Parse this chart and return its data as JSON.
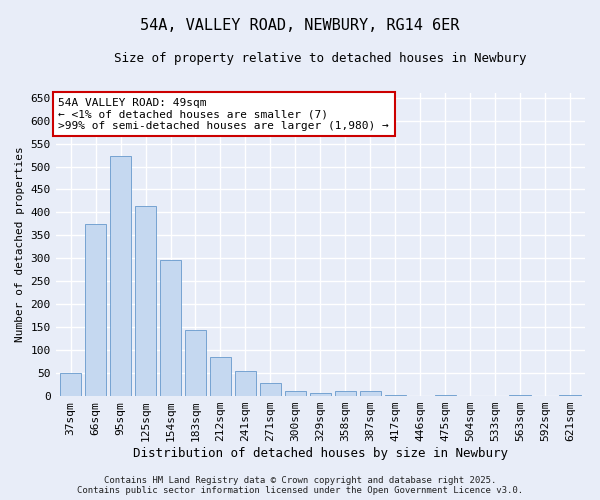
{
  "title_line1": "54A, VALLEY ROAD, NEWBURY, RG14 6ER",
  "title_line2": "Size of property relative to detached houses in Newbury",
  "xlabel": "Distribution of detached houses by size in Newbury",
  "ylabel": "Number of detached properties",
  "categories": [
    "37sqm",
    "66sqm",
    "95sqm",
    "125sqm",
    "154sqm",
    "183sqm",
    "212sqm",
    "241sqm",
    "271sqm",
    "300sqm",
    "329sqm",
    "358sqm",
    "387sqm",
    "417sqm",
    "446sqm",
    "475sqm",
    "504sqm",
    "533sqm",
    "563sqm",
    "592sqm",
    "621sqm"
  ],
  "values": [
    50,
    375,
    522,
    413,
    297,
    144,
    85,
    55,
    28,
    10,
    7,
    10,
    12,
    3,
    0,
    3,
    0,
    0,
    2,
    0,
    2
  ],
  "bar_color": "#c5d8f0",
  "bar_edge_color": "#6699cc",
  "annotation_box_text": "54A VALLEY ROAD: 49sqm\n← <1% of detached houses are smaller (7)\n>99% of semi-detached houses are larger (1,980) →",
  "annotation_box_color": "#ffffff",
  "annotation_box_edge_color": "#cc0000",
  "ylim": [
    0,
    660
  ],
  "yticks": [
    0,
    50,
    100,
    150,
    200,
    250,
    300,
    350,
    400,
    450,
    500,
    550,
    600,
    650
  ],
  "footer_line1": "Contains HM Land Registry data © Crown copyright and database right 2025.",
  "footer_line2": "Contains public sector information licensed under the Open Government Licence v3.0.",
  "bg_color": "#e8edf8",
  "plot_bg_color": "#e8edf8",
  "grid_color": "#ffffff",
  "title_fontsize": 11,
  "subtitle_fontsize": 9,
  "xlabel_fontsize": 9,
  "ylabel_fontsize": 8,
  "tick_fontsize": 8,
  "annot_fontsize": 8,
  "footer_fontsize": 6.5
}
